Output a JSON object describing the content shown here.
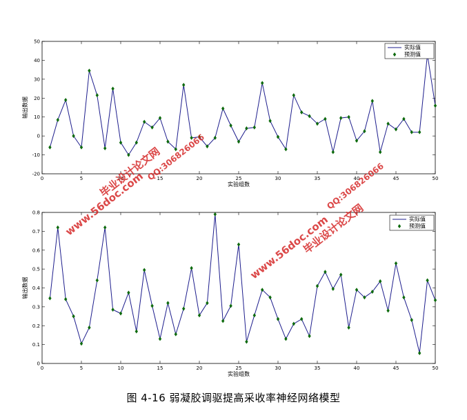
{
  "caption": "图 4-16 弱凝胶调驱提高采收率神经网络模型",
  "colors": {
    "line": "#1c1c8c",
    "marker": "#0d6a0d",
    "watermark": "#d42020"
  },
  "watermarks": {
    "site": "www.56doc.com",
    "qq": "QQ:306826066",
    "name": "毕业设计论文网"
  },
  "chart_data": [
    {
      "type": "line",
      "x": [
        1,
        2,
        3,
        4,
        5,
        6,
        7,
        8,
        9,
        10,
        11,
        12,
        13,
        14,
        15,
        16,
        17,
        18,
        19,
        20,
        21,
        22,
        23,
        24,
        25,
        26,
        27,
        28,
        29,
        30,
        31,
        32,
        33,
        34,
        35,
        36,
        37,
        38,
        39,
        40,
        41,
        42,
        43,
        44,
        45,
        46,
        47,
        48,
        49,
        50
      ],
      "series": [
        {
          "name": "实际值",
          "style": "line",
          "values": [
            -6,
            8.5,
            19,
            0,
            -6,
            34.5,
            21.5,
            -6.5,
            25,
            -3.5,
            -10,
            -3.5,
            7.5,
            4.5,
            9.5,
            -3,
            -7,
            27,
            -1,
            -0.5,
            -5.5,
            -1,
            14.5,
            5.5,
            -3,
            4,
            4.5,
            28,
            8,
            -0.5,
            -7,
            21.5,
            12.5,
            10.5,
            6.5,
            9,
            -8.5,
            9.5,
            10,
            -2.5,
            2.5,
            18.5,
            -8.5,
            6.5,
            3.5,
            9,
            2,
            2,
            43,
            16
          ]
        },
        {
          "name": "预测值",
          "style": "marker",
          "values": [
            -6,
            8.5,
            19,
            0,
            -6,
            34.5,
            21.5,
            -6.5,
            25,
            -3.5,
            -10,
            -3.5,
            7.5,
            4.5,
            9.5,
            -3,
            -7,
            27,
            -1,
            -0.5,
            -5.5,
            -1,
            14.5,
            5.5,
            -3,
            4,
            4.5,
            28,
            8,
            -0.5,
            -7,
            21.5,
            12.5,
            10.5,
            6.5,
            9,
            -8.5,
            9.5,
            10,
            -2.5,
            2.5,
            18.5,
            -8.5,
            6.5,
            3.5,
            9,
            2,
            2,
            43,
            16
          ]
        }
      ],
      "xlabel": "实验组数",
      "ylabel": "输出数据",
      "xlim": [
        0,
        50
      ],
      "ylim": [
        -20,
        50
      ],
      "xticks": [
        0,
        5,
        10,
        15,
        20,
        25,
        30,
        35,
        40,
        45,
        50
      ],
      "yticks": [
        -20,
        -10,
        0,
        10,
        20,
        30,
        40,
        50
      ],
      "grid": false,
      "legend": "top-right"
    },
    {
      "type": "line",
      "x": [
        1,
        2,
        3,
        4,
        5,
        6,
        7,
        8,
        9,
        10,
        11,
        12,
        13,
        14,
        15,
        16,
        17,
        18,
        19,
        20,
        21,
        22,
        23,
        24,
        25,
        26,
        27,
        28,
        29,
        30,
        31,
        32,
        33,
        34,
        35,
        36,
        37,
        38,
        39,
        40,
        41,
        42,
        43,
        44,
        45,
        46,
        47,
        48,
        49,
        50
      ],
      "series": [
        {
          "name": "实际值",
          "style": "line",
          "values": [
            0.345,
            0.72,
            0.34,
            0.25,
            0.105,
            0.19,
            0.44,
            0.72,
            0.285,
            0.265,
            0.375,
            0.17,
            0.495,
            0.305,
            0.13,
            0.32,
            0.155,
            0.29,
            0.505,
            0.255,
            0.32,
            0.79,
            0.225,
            0.305,
            0.63,
            0.115,
            0.255,
            0.39,
            0.35,
            0.235,
            0.13,
            0.21,
            0.235,
            0.145,
            0.41,
            0.485,
            0.395,
            0.47,
            0.19,
            0.39,
            0.35,
            0.38,
            0.435,
            0.28,
            0.53,
            0.35,
            0.23,
            0.055,
            0.44,
            0.335
          ]
        },
        {
          "name": "预测值",
          "style": "marker",
          "values": [
            0.345,
            0.72,
            0.34,
            0.25,
            0.105,
            0.19,
            0.44,
            0.72,
            0.285,
            0.265,
            0.375,
            0.17,
            0.495,
            0.305,
            0.13,
            0.32,
            0.155,
            0.29,
            0.505,
            0.255,
            0.32,
            0.79,
            0.225,
            0.305,
            0.63,
            0.115,
            0.255,
            0.39,
            0.35,
            0.235,
            0.13,
            0.21,
            0.235,
            0.145,
            0.41,
            0.485,
            0.395,
            0.47,
            0.19,
            0.39,
            0.35,
            0.38,
            0.435,
            0.28,
            0.53,
            0.35,
            0.23,
            0.055,
            0.44,
            0.335
          ]
        }
      ],
      "xlabel": "实验组数",
      "ylabel": "输出数据",
      "xlim": [
        0,
        50
      ],
      "ylim": [
        0,
        0.8
      ],
      "xticks": [
        0,
        5,
        10,
        15,
        20,
        25,
        30,
        35,
        40,
        45,
        50
      ],
      "yticks": [
        0,
        0.1,
        0.2,
        0.3,
        0.4,
        0.5,
        0.6,
        0.7,
        0.8
      ],
      "grid": false,
      "legend": "top-right"
    }
  ]
}
